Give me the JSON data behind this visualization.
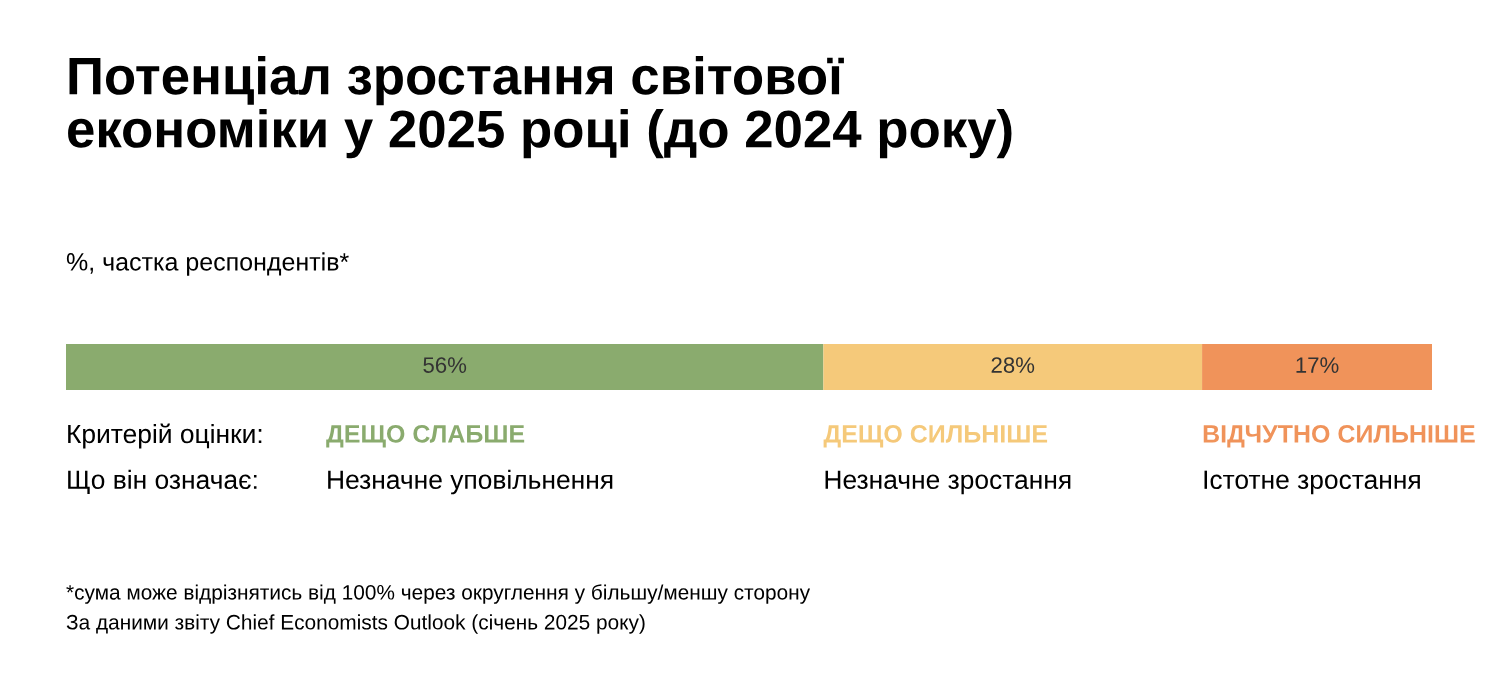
{
  "chart_data": {
    "type": "bar",
    "orientation": "horizontal",
    "stacked": true,
    "title": "Потенціал зростання світової\nекономіки у 2025 році (до 2024 року)",
    "subtitle": "%, частка респондентів*",
    "categories": [
      null
    ],
    "series": [
      {
        "name": "ДЕЩО СЛАБШЕ",
        "color": "#8aab6e",
        "values": [
          56
        ],
        "value_labels": [
          "56%"
        ]
      },
      {
        "name": "ДЕЩО СИЛЬНІШЕ",
        "color": "#f5c97a",
        "values": [
          28
        ],
        "value_labels": [
          "28%"
        ]
      },
      {
        "name": "ВІДЧУТНО СИЛЬНІШЕ",
        "color": "#f0935a",
        "values": [
          17
        ],
        "value_labels": [
          "17%"
        ]
      }
    ],
    "annotations": [
      "Критерій оцінки:",
      "Що він означає:",
      "Незначне уповільнення",
      "Незначне зростання",
      "Істотне зростання",
      "*сума може відрізнятись від 100% через округлення у більшу/меншу сторону",
      "За даними звіту Chief Economists Outlook (січень 2025 року)"
    ]
  }
}
